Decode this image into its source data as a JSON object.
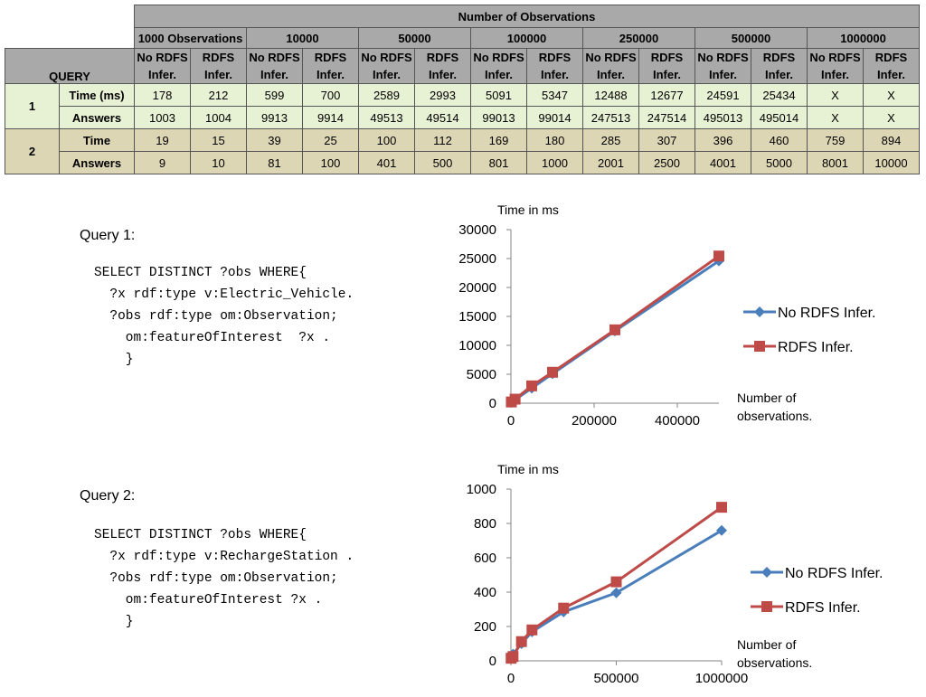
{
  "table": {
    "group_header": "Number of Observations",
    "query_header": "QUERY",
    "obs_columns": [
      "1000 Observations",
      "10000",
      "50000",
      "100000",
      "250000",
      "500000",
      "1000000"
    ],
    "sub_columns": [
      "No RDFS Infer.",
      "RDFS Infer."
    ],
    "rows": [
      {
        "query": "1",
        "label": "Time (ms)",
        "values": [
          "178",
          "212",
          "599",
          "700",
          "2589",
          "2993",
          "5091",
          "5347",
          "12488",
          "12677",
          "24591",
          "25434",
          "X",
          "X"
        ]
      },
      {
        "query": "",
        "label": "Answers",
        "values": [
          "1003",
          "1004",
          "9913",
          "9914",
          "49513",
          "49514",
          "99013",
          "99014",
          "247513",
          "247514",
          "495013",
          "495014",
          "X",
          "X"
        ]
      },
      {
        "query": "2",
        "label": "Time",
        "values": [
          "19",
          "15",
          "39",
          "25",
          "100",
          "112",
          "169",
          "180",
          "285",
          "307",
          "396",
          "460",
          "759",
          "894"
        ]
      },
      {
        "query": "",
        "label": "Answers",
        "values": [
          "9",
          "10",
          "81",
          "100",
          "401",
          "500",
          "801",
          "1000",
          "2001",
          "2500",
          "4001",
          "5000",
          "8001",
          "10000"
        ]
      }
    ]
  },
  "queries": [
    {
      "label": "Query 1:",
      "code": [
        "SELECT DISTINCT ?obs WHERE{",
        "  ?x rdf:type v:Electric_Vehicle.",
        "  ?obs rdf:type om:Observation;",
        "    om:featureOfInterest  ?x .",
        "    }"
      ]
    },
    {
      "label": "Query 2:",
      "code": [
        "SELECT DISTINCT ?obs WHERE{",
        "  ?x rdf:type v:RechargeStation .",
        "  ?obs rdf:type om:Observation;",
        "    om:featureOfInterest ?x .",
        "    }"
      ]
    }
  ],
  "chart_data": [
    {
      "type": "line",
      "title": "",
      "ylabel": "Time in ms",
      "xlabel": "Number of observations.",
      "xlim": [
        0,
        500000
      ],
      "ylim": [
        0,
        30000
      ],
      "xticks": [
        0,
        200000,
        400000
      ],
      "yticks": [
        0,
        5000,
        10000,
        15000,
        20000,
        25000,
        30000
      ],
      "x": [
        1000,
        10000,
        50000,
        100000,
        250000,
        500000
      ],
      "series": [
        {
          "name": "No RDFS Infer.",
          "color": "#4a7ebb",
          "marker": "diamond",
          "values": [
            178,
            599,
            2589,
            5091,
            12488,
            24591
          ]
        },
        {
          "name": "RDFS Infer.",
          "color": "#be4b48",
          "marker": "square",
          "values": [
            212,
            700,
            2993,
            5347,
            12677,
            25434
          ]
        }
      ],
      "grid": false,
      "legend": "right"
    },
    {
      "type": "line",
      "title": "",
      "ylabel": "Time in ms",
      "xlabel": "Number of observations.",
      "xlim": [
        0,
        1000000
      ],
      "ylim": [
        0,
        1000
      ],
      "xticks": [
        0,
        500000,
        1000000
      ],
      "yticks": [
        0,
        200,
        400,
        600,
        800,
        1000
      ],
      "x": [
        1000,
        10000,
        50000,
        100000,
        250000,
        500000,
        1000000
      ],
      "series": [
        {
          "name": "No RDFS Infer.",
          "color": "#4a7ebb",
          "marker": "diamond",
          "values": [
            19,
            39,
            100,
            169,
            285,
            396,
            759
          ]
        },
        {
          "name": "RDFS Infer.",
          "color": "#be4b48",
          "marker": "square",
          "values": [
            15,
            25,
            112,
            180,
            307,
            460,
            894
          ]
        }
      ],
      "grid": false,
      "legend": "right"
    }
  ]
}
